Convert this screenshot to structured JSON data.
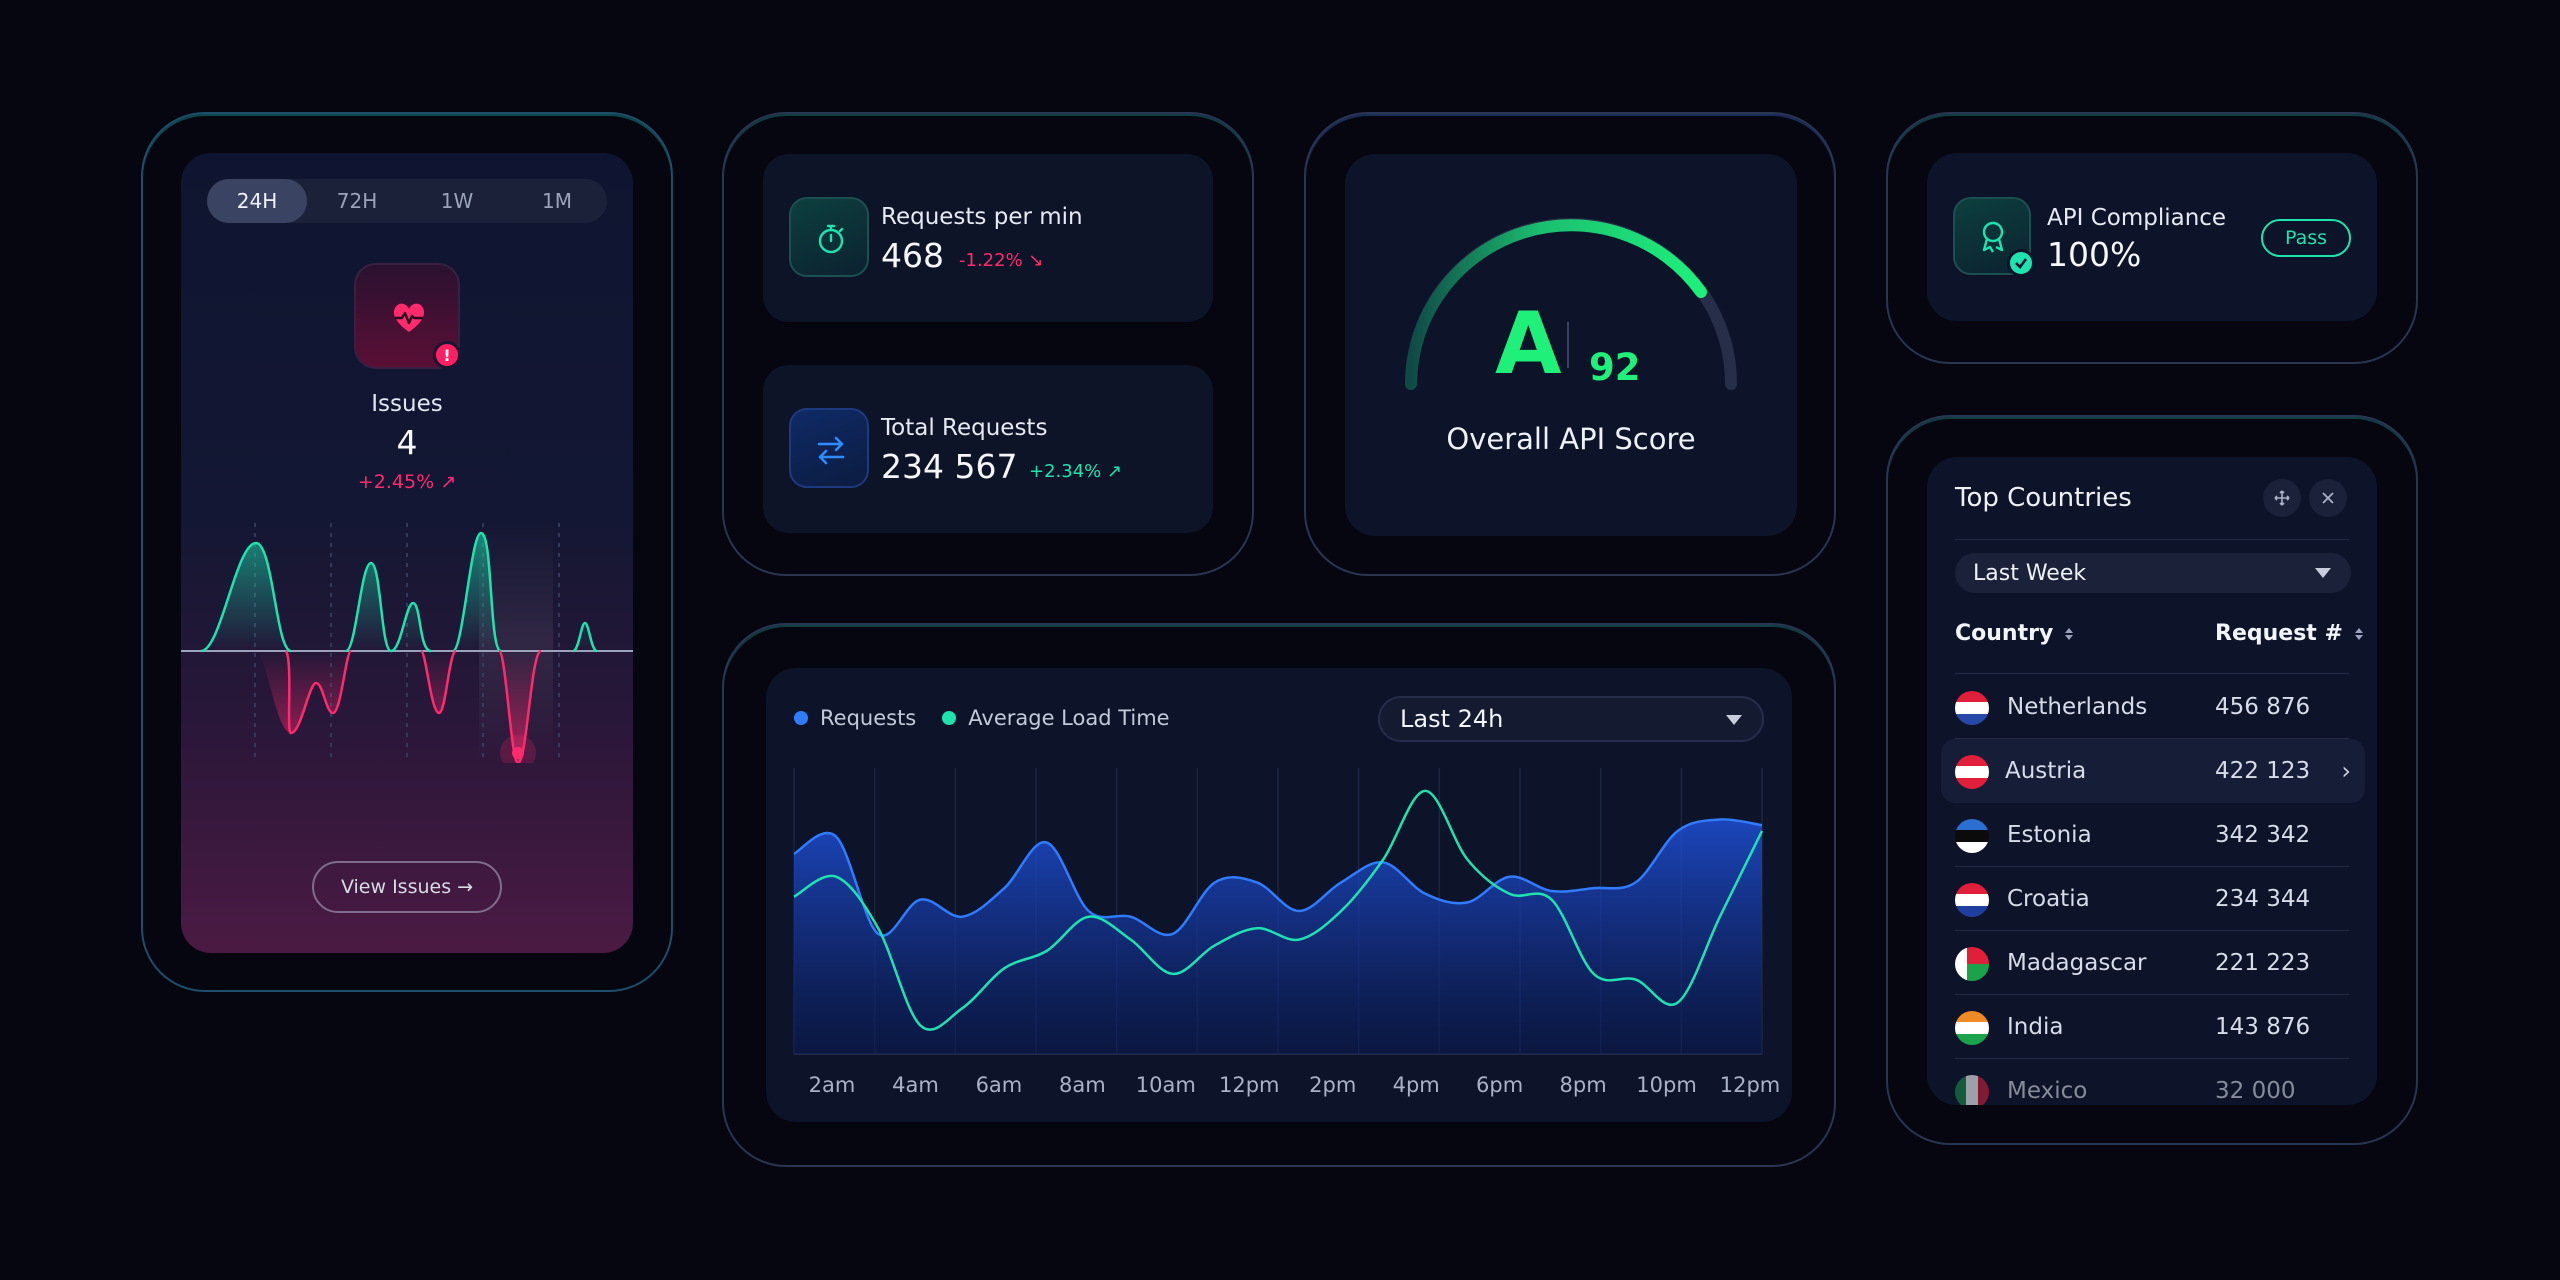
{
  "issues": {
    "tabs": [
      "24H",
      "72H",
      "1W",
      "1M"
    ],
    "active_tab": "24H",
    "title": "Issues",
    "value": "4",
    "delta": "+2.45% ↗",
    "alert_badge": "!",
    "view_button": "View Issues →",
    "icons": [
      "heart-pulse-icon",
      "alert-icon"
    ]
  },
  "requests_per_min": {
    "label": "Requests per min",
    "value": "468",
    "delta": "-1.22% ↘",
    "icon": "stopwatch-icon"
  },
  "total_requests": {
    "label": "Total Requests",
    "value": "234 567",
    "delta": "+2.34% ↗",
    "icon": "swap-arrows-icon"
  },
  "score": {
    "grade": "A",
    "value": "92",
    "label": "Overall API Score",
    "gauge_fraction": 0.92
  },
  "compliance": {
    "label": "API Compliance",
    "value": "100%",
    "badge": "Pass",
    "icon": "badge-check-icon"
  },
  "chart": {
    "range_selected": "Last 24h"
  },
  "chart_data": {
    "type": "area",
    "legend_position": "top-left",
    "series": [
      {
        "name": "Requests",
        "values": [
          70,
          76,
          42,
          54,
          48,
          58,
          74,
          50,
          48,
          42,
          60,
          60,
          50,
          60,
          67,
          56,
          53,
          62,
          57,
          58,
          60,
          78,
          82,
          80
        ]
      },
      {
        "name": "Average Load Time",
        "values": [
          55,
          62,
          44,
          10,
          16,
          30,
          36,
          48,
          40,
          28,
          38,
          44,
          40,
          50,
          68,
          92,
          68,
          56,
          54,
          28,
          26,
          18,
          48,
          78
        ]
      }
    ],
    "x_ticks": [
      "2am",
      "4am",
      "6am",
      "8am",
      "10am",
      "12pm",
      "2pm",
      "4pm",
      "6pm",
      "8pm",
      "10pm",
      "12pm"
    ],
    "ylim": [
      0,
      100
    ],
    "grid": true,
    "colors": {
      "Requests": "#2f7cff",
      "Average Load Time": "#1ee3b0"
    }
  },
  "countries": {
    "title": "Top Countries",
    "range_selected": "Last Week",
    "col_country": "Country",
    "col_requests": "Request #",
    "rows": [
      {
        "name": "Netherlands",
        "value": "456 876"
      },
      {
        "name": "Austria",
        "value": "422 123"
      },
      {
        "name": "Estonia",
        "value": "342 342"
      },
      {
        "name": "Croatia",
        "value": "234 344"
      },
      {
        "name": "Madagascar",
        "value": "221 223"
      },
      {
        "name": "India",
        "value": "143 876"
      },
      {
        "name": "Mexico",
        "value": "32 000"
      }
    ],
    "highlighted_row": "Austria",
    "icons": [
      "move-icon",
      "close-icon",
      "chevron-right-icon"
    ]
  },
  "theme": {
    "background": "#05060f",
    "panel": "#0d1328",
    "accent_teal": "#1ee3b0",
    "accent_pink": "#ff2a6d",
    "accent_green": "#1ef07a",
    "accent_blue": "#2f7cff"
  }
}
